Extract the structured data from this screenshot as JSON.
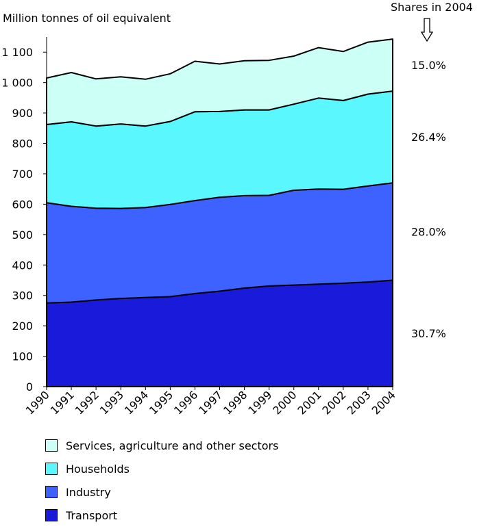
{
  "chart_data": {
    "type": "area",
    "stacked": true,
    "ylabel": "Million tonnes of oil equivalent",
    "ylim": [
      0,
      1150
    ],
    "yticks": [
      0,
      100,
      200,
      300,
      400,
      500,
      600,
      700,
      800,
      900,
      1000,
      1100
    ],
    "ytick_labels": [
      "0",
      "100",
      "200",
      "300",
      "400",
      "500",
      "600",
      "700",
      "800",
      "900",
      "1 000",
      "1 100"
    ],
    "categories": [
      "1990",
      "1991",
      "1992",
      "1993",
      "1994",
      "1995",
      "1996",
      "1997",
      "1998",
      "1999",
      "2000",
      "2001",
      "2002",
      "2003",
      "2004"
    ],
    "series": [
      {
        "name": "Transport",
        "color": "#1a1adb",
        "values": [
          275,
          278,
          285,
          290,
          293,
          296,
          306,
          314,
          324,
          331,
          334,
          337,
          340,
          344,
          350
        ]
      },
      {
        "name": "Industry",
        "color": "#3d62ff",
        "values": [
          330,
          315,
          302,
          296,
          296,
          303,
          306,
          309,
          304,
          298,
          312,
          313,
          309,
          316,
          320
        ]
      },
      {
        "name": "Households",
        "color": "#5af7ff",
        "values": [
          257,
          278,
          270,
          278,
          268,
          273,
          292,
          282,
          282,
          281,
          283,
          299,
          292,
          302,
          302
        ]
      },
      {
        "name": "Services, agriculture and other sectors",
        "color": "#ccfff5",
        "values": [
          153,
          162,
          155,
          155,
          154,
          157,
          166,
          156,
          162,
          163,
          158,
          166,
          161,
          171,
          171
        ]
      }
    ],
    "shares_label": "Shares in 2004",
    "shares": [
      "30.7%",
      "28.0%",
      "26.4%",
      "15.0%"
    ],
    "legend_order": [
      "Services, agriculture and other sectors",
      "Households",
      "Industry",
      "Transport"
    ],
    "legend_placement": "bottom"
  }
}
